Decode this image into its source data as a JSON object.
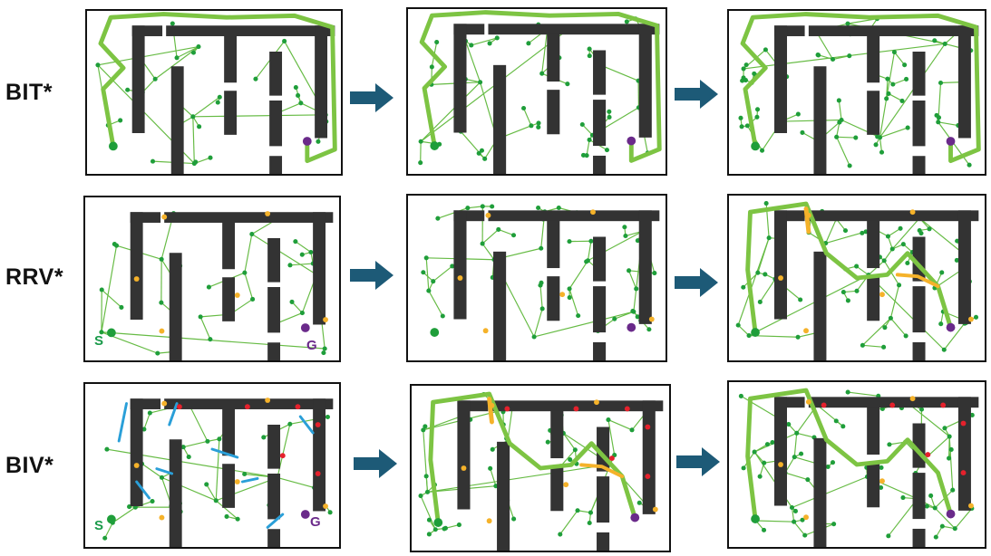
{
  "rows": [
    {
      "label": "BIT*"
    },
    {
      "label": "RRV*"
    },
    {
      "label": "BIV*"
    }
  ],
  "markers": {
    "start": "S",
    "goal": "G"
  },
  "colors": {
    "wall": "#333333",
    "tree": "#66bb44",
    "node": "#1f9e3a",
    "path": "#7dc443",
    "bridge": "#f5b22a",
    "ibridge": "#2a9fd8",
    "red_node": "#e5212c",
    "goal": "#6a2a8a",
    "arrow": "#1d5a77"
  }
}
